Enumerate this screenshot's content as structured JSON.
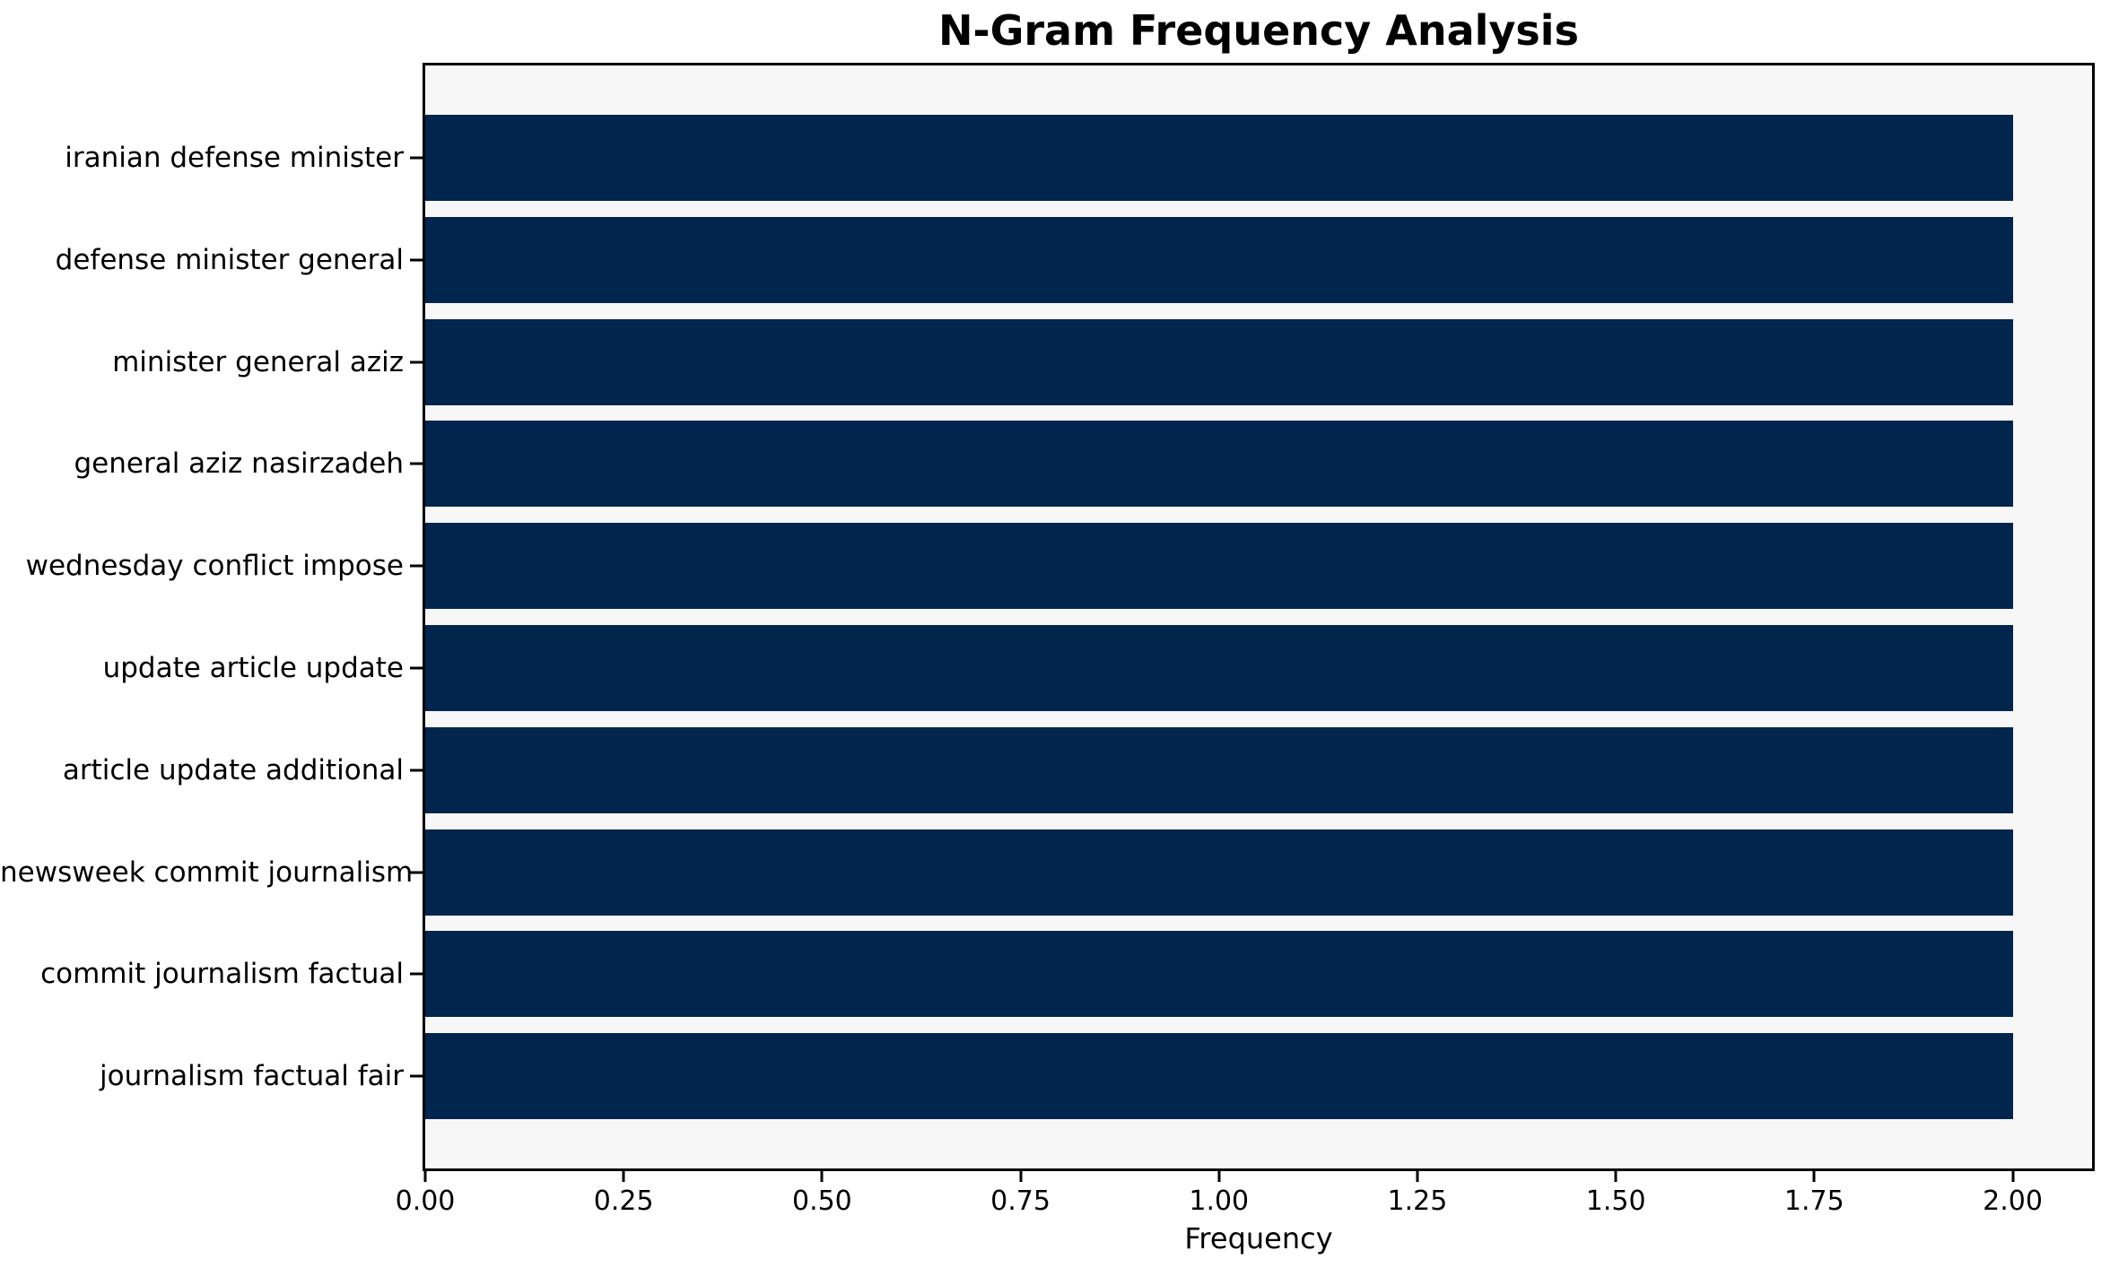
{
  "chart_data": {
    "type": "bar",
    "orientation": "horizontal",
    "title": "N-Gram Frequency Analysis",
    "xlabel": "Frequency",
    "ylabel": "",
    "categories": [
      "iranian defense minister",
      "defense minister general",
      "minister general aziz",
      "general aziz nasirzadeh",
      "wednesday conflict impose",
      "update article update",
      "article update additional",
      "newsweek commit journalism",
      "commit journalism factual",
      "journalism factual fair"
    ],
    "values": [
      2.0,
      2.0,
      2.0,
      2.0,
      2.0,
      2.0,
      2.0,
      2.0,
      2.0,
      2.0
    ],
    "xlim": [
      0,
      2.1
    ],
    "xticks": [
      0.0,
      0.25,
      0.5,
      0.75,
      1.0,
      1.25,
      1.5,
      1.75,
      2.0
    ],
    "xtick_labels": [
      "0.00",
      "0.25",
      "0.50",
      "0.75",
      "1.00",
      "1.25",
      "1.50",
      "1.75",
      "2.00"
    ],
    "grid": false,
    "legend": null,
    "colors": {
      "bar": "#02254e",
      "plot_background": "#f7f7f7",
      "figure_background": "#ffffff",
      "spine": "#000000",
      "text": "#000000"
    }
  }
}
